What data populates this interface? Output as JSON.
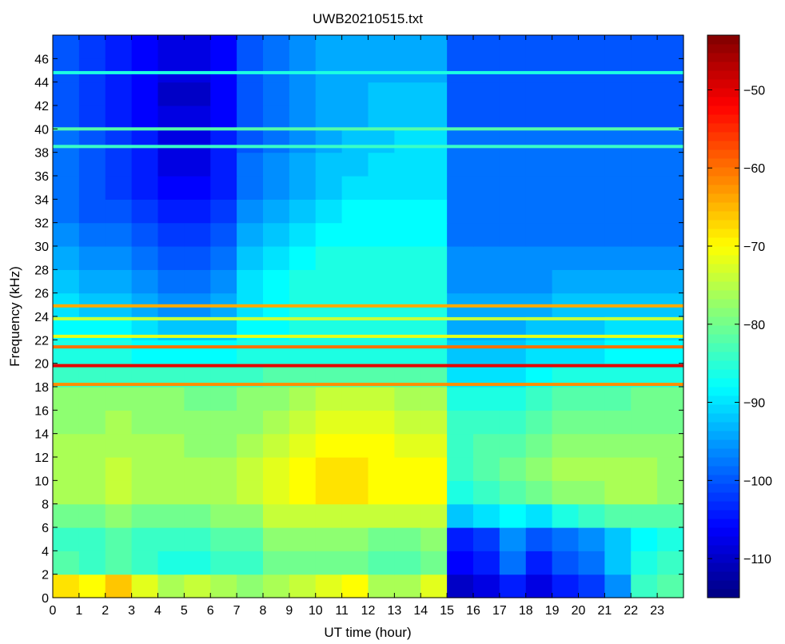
{
  "chart_data": {
    "type": "heatmap",
    "title": "UWB20210515.txt",
    "xlabel": "UT time (hour)",
    "ylabel": "Frequency (kHz)",
    "xlim": [
      0,
      24
    ],
    "ylim": [
      0,
      48
    ],
    "x_ticks": [
      0,
      1,
      2,
      3,
      4,
      5,
      6,
      7,
      8,
      9,
      10,
      11,
      12,
      13,
      14,
      15,
      16,
      17,
      18,
      19,
      20,
      21,
      22,
      23
    ],
    "y_ticks": [
      0,
      2,
      4,
      6,
      8,
      10,
      12,
      14,
      16,
      18,
      20,
      22,
      24,
      26,
      28,
      30,
      32,
      34,
      36,
      38,
      40,
      42,
      44,
      46
    ],
    "colorbar": {
      "range": [
        -115,
        -43
      ],
      "ticks": [
        -110,
        -100,
        -90,
        -80,
        -70,
        -60,
        -50
      ],
      "colormap": "jet"
    },
    "x_hours": [
      0,
      1,
      2,
      3,
      4,
      5,
      6,
      7,
      8,
      9,
      10,
      11,
      12,
      13,
      14,
      15,
      16,
      17,
      18,
      19,
      20,
      21,
      22,
      23
    ],
    "y_khz": [
      1,
      3,
      5,
      7,
      9,
      11,
      13,
      15,
      17,
      19,
      21,
      23,
      25,
      27,
      29,
      31,
      33,
      35,
      37,
      39,
      41,
      43,
      45,
      47
    ],
    "z_dB": [
      [
        -68,
        -70,
        -66,
        -72,
        -76,
        -74,
        -76,
        -78,
        -76,
        -74,
        -72,
        -70,
        -76,
        -76,
        -72,
        -110,
        -108,
        -104,
        -108,
        -104,
        -102,
        -96,
        -84,
        -82
      ],
      [
        -82,
        -84,
        -82,
        -84,
        -86,
        -86,
        -84,
        -84,
        -80,
        -80,
        -80,
        -80,
        -82,
        -82,
        -80,
        -106,
        -104,
        -98,
        -104,
        -100,
        -98,
        -92,
        -86,
        -84
      ],
      [
        -84,
        -84,
        -82,
        -84,
        -84,
        -84,
        -82,
        -82,
        -78,
        -78,
        -78,
        -78,
        -80,
        -80,
        -78,
        -104,
        -102,
        -96,
        -100,
        -98,
        -96,
        -92,
        -88,
        -86
      ],
      [
        -80,
        -80,
        -78,
        -80,
        -80,
        -80,
        -78,
        -78,
        -74,
        -74,
        -74,
        -74,
        -74,
        -74,
        -74,
        -92,
        -90,
        -88,
        -90,
        -86,
        -84,
        -82,
        -82,
        -82
      ],
      [
        -76,
        -76,
        -74,
        -76,
        -76,
        -76,
        -76,
        -74,
        -72,
        -70,
        -68,
        -68,
        -70,
        -70,
        -70,
        -86,
        -84,
        -82,
        -80,
        -78,
        -78,
        -76,
        -76,
        -78
      ],
      [
        -76,
        -76,
        -74,
        -76,
        -76,
        -76,
        -76,
        -74,
        -72,
        -70,
        -68,
        -68,
        -70,
        -70,
        -70,
        -84,
        -82,
        -80,
        -78,
        -76,
        -76,
        -76,
        -76,
        -78
      ],
      [
        -76,
        -76,
        -76,
        -76,
        -76,
        -78,
        -78,
        -76,
        -74,
        -72,
        -70,
        -70,
        -70,
        -72,
        -72,
        -84,
        -82,
        -82,
        -80,
        -78,
        -78,
        -78,
        -78,
        -78
      ],
      [
        -78,
        -78,
        -76,
        -78,
        -78,
        -78,
        -78,
        -78,
        -76,
        -74,
        -72,
        -72,
        -72,
        -74,
        -74,
        -84,
        -84,
        -84,
        -82,
        -80,
        -80,
        -80,
        -80,
        -80
      ],
      [
        -78,
        -78,
        -78,
        -78,
        -78,
        -80,
        -80,
        -78,
        -78,
        -76,
        -74,
        -74,
        -74,
        -76,
        -76,
        -86,
        -86,
        -86,
        -84,
        -82,
        -82,
        -82,
        -80,
        -80
      ],
      [
        -84,
        -84,
        -84,
        -84,
        -84,
        -84,
        -84,
        -84,
        -82,
        -82,
        -82,
        -82,
        -82,
        -82,
        -82,
        -90,
        -90,
        -90,
        -88,
        -86,
        -86,
        -86,
        -86,
        -86
      ],
      [
        -86,
        -86,
        -86,
        -88,
        -88,
        -88,
        -88,
        -86,
        -86,
        -86,
        -86,
        -86,
        -86,
        -86,
        -86,
        -92,
        -92,
        -92,
        -90,
        -90,
        -90,
        -88,
        -88,
        -88
      ],
      [
        -88,
        -88,
        -88,
        -90,
        -92,
        -92,
        -92,
        -88,
        -88,
        -86,
        -86,
        -86,
        -86,
        -86,
        -86,
        -94,
        -94,
        -94,
        -92,
        -92,
        -92,
        -90,
        -90,
        -90
      ],
      [
        -90,
        -92,
        -92,
        -94,
        -96,
        -96,
        -94,
        -90,
        -88,
        -86,
        -86,
        -86,
        -86,
        -86,
        -86,
        -94,
        -94,
        -94,
        -94,
        -92,
        -92,
        -92,
        -92,
        -92
      ],
      [
        -92,
        -94,
        -94,
        -96,
        -98,
        -98,
        -96,
        -90,
        -88,
        -86,
        -86,
        -86,
        -86,
        -86,
        -86,
        -96,
        -96,
        -96,
        -96,
        -94,
        -94,
        -94,
        -94,
        -94
      ],
      [
        -94,
        -96,
        -96,
        -98,
        -100,
        -100,
        -98,
        -92,
        -90,
        -88,
        -86,
        -86,
        -86,
        -86,
        -86,
        -96,
        -96,
        -96,
        -96,
        -96,
        -96,
        -96,
        -96,
        -96
      ],
      [
        -96,
        -98,
        -98,
        -100,
        -102,
        -102,
        -100,
        -94,
        -92,
        -90,
        -88,
        -88,
        -88,
        -88,
        -88,
        -98,
        -98,
        -98,
        -98,
        -98,
        -98,
        -98,
        -98,
        -98
      ],
      [
        -98,
        -100,
        -100,
        -102,
        -104,
        -104,
        -102,
        -96,
        -94,
        -92,
        -90,
        -88,
        -88,
        -88,
        -88,
        -98,
        -98,
        -98,
        -98,
        -98,
        -98,
        -98,
        -98,
        -98
      ],
      [
        -98,
        -100,
        -102,
        -104,
        -106,
        -106,
        -104,
        -98,
        -96,
        -94,
        -92,
        -90,
        -90,
        -90,
        -90,
        -98,
        -98,
        -98,
        -98,
        -98,
        -98,
        -98,
        -98,
        -98
      ],
      [
        -98,
        -100,
        -102,
        -104,
        -108,
        -108,
        -104,
        -98,
        -96,
        -94,
        -92,
        -92,
        -90,
        -90,
        -90,
        -98,
        -98,
        -98,
        -98,
        -98,
        -98,
        -98,
        -98,
        -98
      ],
      [
        -98,
        -100,
        -102,
        -104,
        -108,
        -108,
        -104,
        -100,
        -98,
        -96,
        -94,
        -92,
        -92,
        -90,
        -90,
        -98,
        -98,
        -98,
        -98,
        -98,
        -98,
        -98,
        -98,
        -98
      ],
      [
        -100,
        -102,
        -104,
        -106,
        -108,
        -108,
        -106,
        -100,
        -98,
        -96,
        -94,
        -94,
        -92,
        -92,
        -92,
        -100,
        -100,
        -100,
        -100,
        -100,
        -100,
        -100,
        -100,
        -100
      ],
      [
        -100,
        -102,
        -104,
        -106,
        -110,
        -110,
        -106,
        -100,
        -98,
        -96,
        -94,
        -94,
        -92,
        -92,
        -92,
        -100,
        -100,
        -100,
        -100,
        -100,
        -100,
        -100,
        -100,
        -100
      ],
      [
        -100,
        -102,
        -104,
        -106,
        -108,
        -108,
        -106,
        -100,
        -98,
        -96,
        -94,
        -94,
        -94,
        -94,
        -94,
        -100,
        -100,
        -100,
        -100,
        -100,
        -100,
        -100,
        -100,
        -100
      ],
      [
        -100,
        -102,
        -104,
        -106,
        -108,
        -108,
        -106,
        -100,
        -98,
        -96,
        -94,
        -94,
        -94,
        -94,
        -94,
        -100,
        -100,
        -100,
        -100,
        -100,
        -100,
        -100,
        -100,
        -100
      ]
    ],
    "lines": [
      {
        "freq_khz": 19.8,
        "value_dB": -50
      },
      {
        "freq_khz": 21.4,
        "value_dB": -60
      },
      {
        "freq_khz": 18.2,
        "value_dB": -62
      },
      {
        "freq_khz": 24.9,
        "value_dB": -64
      },
      {
        "freq_khz": 22.3,
        "value_dB": -72
      },
      {
        "freq_khz": 23.8,
        "value_dB": -74
      },
      {
        "freq_khz": 38.5,
        "value_dB": -84
      },
      {
        "freq_khz": 40.0,
        "value_dB": -82
      },
      {
        "freq_khz": 44.8,
        "value_dB": -86
      }
    ]
  }
}
